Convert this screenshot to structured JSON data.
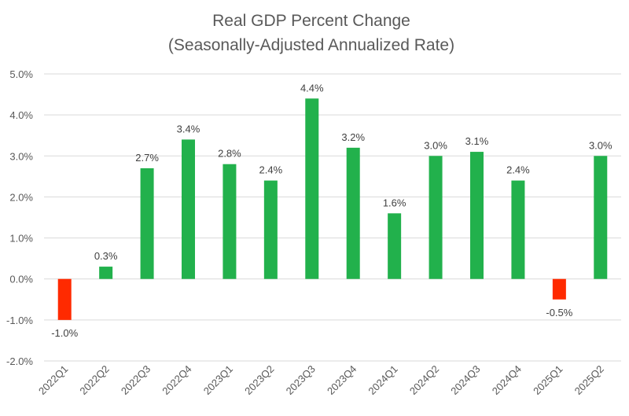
{
  "chart_data": {
    "type": "bar",
    "title": "Real GDP Percent Change",
    "subtitle": "(Seasonally-Adjusted Annualized Rate)",
    "categories": [
      "2022Q1",
      "2022Q2",
      "2022Q3",
      "2022Q4",
      "2023Q1",
      "2023Q2",
      "2023Q3",
      "2023Q4",
      "2024Q1",
      "2024Q2",
      "2024Q3",
      "2024Q4",
      "2025Q1",
      "2025Q2"
    ],
    "values": [
      -1.0,
      0.3,
      2.7,
      3.4,
      2.8,
      2.4,
      4.4,
      3.2,
      1.6,
      3.0,
      3.1,
      2.4,
      -0.5,
      3.0
    ],
    "data_labels": [
      "-1.0%",
      "0.3%",
      "2.7%",
      "3.4%",
      "2.8%",
      "2.4%",
      "4.4%",
      "3.2%",
      "1.6%",
      "3.0%",
      "3.1%",
      "2.4%",
      "-0.5%",
      "3.0%"
    ],
    "yticks": [
      5.0,
      4.0,
      3.0,
      2.0,
      1.0,
      0.0,
      -1.0,
      -2.0
    ],
    "ytick_labels": [
      "5.0%",
      "4.0%",
      "3.0%",
      "2.0%",
      "1.0%",
      "0.0%",
      "-1.0%",
      "-2.0%"
    ],
    "ylim": [
      -2.0,
      5.0
    ],
    "xlabel": "",
    "ylabel": "",
    "grid": true,
    "legend": "none",
    "colors": {
      "positive": "#22b14c",
      "negative": "#ff2a00",
      "gridline": "#d9d9d9",
      "text": "#595959"
    }
  }
}
